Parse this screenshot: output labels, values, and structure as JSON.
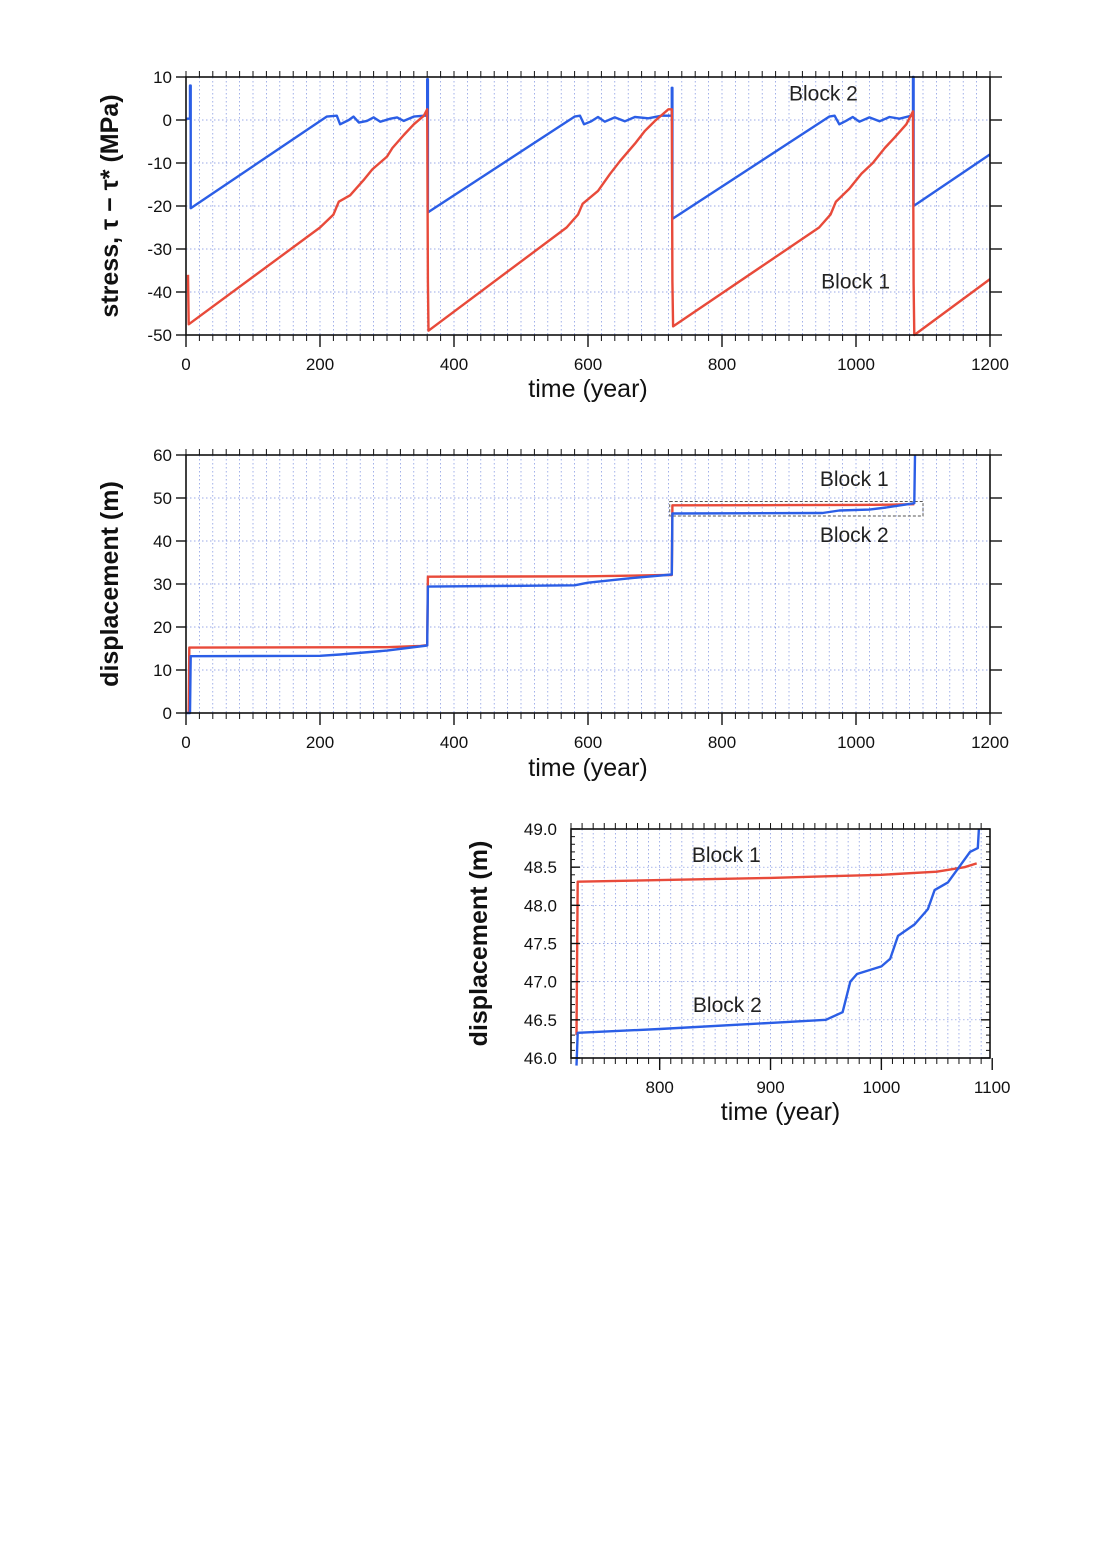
{
  "chart_data": [
    {
      "type": "line",
      "id": "stress",
      "xlabel": "time (year)",
      "ylabel": "stress, τ − τ* (MPa)",
      "xlim": [
        0,
        1200
      ],
      "ylim": [
        -50,
        10
      ],
      "xticks": [
        0,
        200,
        400,
        600,
        800,
        1000,
        1200
      ],
      "yticks": [
        10,
        0,
        -10,
        -20,
        -30,
        -40,
        -50
      ],
      "grid": true,
      "series": [
        {
          "name": "Block 2",
          "color": "#2b5ee6",
          "label_at": [
            900,
            4.5
          ],
          "points": [
            [
              0,
              0.3
            ],
            [
              6,
              0.3
            ],
            [
              6,
              8
            ],
            [
              7,
              8
            ],
            [
              7,
              -20.5
            ],
            [
              210,
              0.8
            ],
            [
              225,
              1
            ],
            [
              230,
              -1
            ],
            [
              243,
              0
            ],
            [
              250,
              0.8
            ],
            [
              258,
              -0.6
            ],
            [
              270,
              -0.2
            ],
            [
              280,
              0.6
            ],
            [
              290,
              -0.4
            ],
            [
              305,
              0.3
            ],
            [
              315,
              0.6
            ],
            [
              325,
              -0.2
            ],
            [
              340,
              0.8
            ],
            [
              355,
              1
            ],
            [
              360,
              1
            ],
            [
              360,
              9.5
            ],
            [
              361,
              9.5
            ],
            [
              361,
              -21.5
            ],
            [
              580,
              0.8
            ],
            [
              588,
              1
            ],
            [
              594,
              -1
            ],
            [
              605,
              -0.3
            ],
            [
              615,
              0.7
            ],
            [
              625,
              -0.4
            ],
            [
              640,
              0.6
            ],
            [
              655,
              -0.3
            ],
            [
              670,
              0.7
            ],
            [
              690,
              0.4
            ],
            [
              710,
              1
            ],
            [
              725,
              1
            ],
            [
              725,
              7.5
            ],
            [
              726,
              7.5
            ],
            [
              726,
              -23
            ],
            [
              960,
              0.8
            ],
            [
              968,
              1
            ],
            [
              975,
              -1
            ],
            [
              985,
              -0.2
            ],
            [
              995,
              0.7
            ],
            [
              1005,
              -0.4
            ],
            [
              1020,
              0.6
            ],
            [
              1035,
              -0.3
            ],
            [
              1050,
              0.7
            ],
            [
              1065,
              0.3
            ],
            [
              1080,
              0.9
            ],
            [
              1085,
              1
            ],
            [
              1085,
              10
            ],
            [
              1086,
              10
            ],
            [
              1086,
              -20
            ],
            [
              1200,
              -8
            ]
          ]
        },
        {
          "name": "Block 1",
          "color": "#e84a3a",
          "label_at": [
            948,
            -39.2
          ],
          "points": [
            [
              3,
              -36
            ],
            [
              4,
              -47.5
            ],
            [
              200,
              -25
            ],
            [
              220,
              -22
            ],
            [
              228,
              -19
            ],
            [
              245,
              -17.5
            ],
            [
              265,
              -14
            ],
            [
              278,
              -11.5
            ],
            [
              300,
              -8.5
            ],
            [
              308,
              -6.5
            ],
            [
              325,
              -3.5
            ],
            [
              340,
              -1
            ],
            [
              355,
              1
            ],
            [
              360,
              2.5
            ],
            [
              361,
              -37.5
            ],
            [
              362,
              -49
            ],
            [
              568,
              -25
            ],
            [
              585,
              -22
            ],
            [
              592,
              -19.5
            ],
            [
              615,
              -16.5
            ],
            [
              633,
              -12.5
            ],
            [
              648,
              -9.5
            ],
            [
              670,
              -5.5
            ],
            [
              685,
              -2.5
            ],
            [
              700,
              -0.2
            ],
            [
              720,
              2.5
            ],
            [
              725,
              2.5
            ],
            [
              726,
              -37.5
            ],
            [
              727,
              -48
            ],
            [
              945,
              -25
            ],
            [
              962,
              -22
            ],
            [
              970,
              -19
            ],
            [
              990,
              -16
            ],
            [
              1008,
              -12.5
            ],
            [
              1025,
              -10
            ],
            [
              1043,
              -6.5
            ],
            [
              1058,
              -4
            ],
            [
              1075,
              -1
            ],
            [
              1085,
              2
            ],
            [
              1086,
              -38
            ],
            [
              1087,
              -50
            ],
            [
              1200,
              -37
            ]
          ]
        }
      ]
    },
    {
      "type": "line",
      "id": "displacement",
      "xlabel": "time (year)",
      "ylabel": "displacement (m)",
      "xlim": [
        0,
        1200
      ],
      "ylim": [
        0,
        60
      ],
      "xticks": [
        0,
        200,
        400,
        600,
        800,
        1000,
        1200
      ],
      "yticks": [
        60,
        50,
        40,
        30,
        20,
        10,
        0
      ],
      "grid": true,
      "zoom_box": {
        "x": [
          722,
          1100
        ],
        "y": [
          45.8,
          49.2
        ]
      },
      "series": [
        {
          "name": "Block 1",
          "color": "#e84a3a",
          "label_at": [
            946,
            52.8
          ],
          "points": [
            [
              4,
              0
            ],
            [
              5,
              15.2
            ],
            [
              300,
              15.3
            ],
            [
              350,
              15.6
            ],
            [
              360,
              15.8
            ],
            [
              361,
              31.7
            ],
            [
              600,
              31.8
            ],
            [
              720,
              32.1
            ],
            [
              725,
              32.1
            ],
            [
              726,
              48.3
            ],
            [
              900,
              48.35
            ],
            [
              1000,
              48.4
            ],
            [
              1050,
              48.45
            ],
            [
              1087,
              48.55
            ]
          ]
        },
        {
          "name": "Block 2",
          "color": "#2b5ee6",
          "label_at": [
            946,
            39.8
          ],
          "points": [
            [
              0,
              0
            ],
            [
              6,
              0
            ],
            [
              7,
              13.2
            ],
            [
              200,
              13.3
            ],
            [
              230,
              13.6
            ],
            [
              300,
              14.5
            ],
            [
              360,
              15.7
            ],
            [
              361,
              29.4
            ],
            [
              580,
              29.7
            ],
            [
              600,
              30.3
            ],
            [
              660,
              31.3
            ],
            [
              725,
              32.2
            ],
            [
              726,
              46.4
            ],
            [
              950,
              46.5
            ],
            [
              975,
              47.1
            ],
            [
              1020,
              47.3
            ],
            [
              1045,
              47.8
            ],
            [
              1075,
              48.5
            ],
            [
              1087,
              48.8
            ],
            [
              1088,
              60
            ]
          ]
        }
      ]
    },
    {
      "type": "line",
      "id": "displacement-zoom",
      "xlabel": "time (year)",
      "ylabel": "displacement (m)",
      "xlim": [
        720,
        1098
      ],
      "ylim": [
        46,
        49
      ],
      "xticks": [
        800,
        900,
        1000,
        1100
      ],
      "yticks": [
        "49.0",
        "48.5",
        "48.0",
        "47.5",
        "47.0",
        "46.5",
        "46.0"
      ],
      "grid": true,
      "series": [
        {
          "name": "Block 1",
          "color": "#e84a3a",
          "label_at": [
            829,
            48.57
          ],
          "points": [
            [
              725,
              46.3
            ],
            [
              726,
              48.31
            ],
            [
              800,
              48.33
            ],
            [
              900,
              48.36
            ],
            [
              950,
              48.38
            ],
            [
              1000,
              48.4
            ],
            [
              1050,
              48.44
            ],
            [
              1075,
              48.5
            ],
            [
              1086,
              48.55
            ]
          ]
        },
        {
          "name": "Block 2",
          "color": "#2b5ee6",
          "label_at": [
            830,
            46.6
          ],
          "points": [
            [
              725,
              45.9
            ],
            [
              726,
              46.33
            ],
            [
              800,
              46.38
            ],
            [
              900,
              46.46
            ],
            [
              950,
              46.5
            ],
            [
              965,
              46.6
            ],
            [
              972,
              47.0
            ],
            [
              978,
              47.1
            ],
            [
              1000,
              47.2
            ],
            [
              1008,
              47.3
            ],
            [
              1015,
              47.6
            ],
            [
              1030,
              47.75
            ],
            [
              1042,
              47.95
            ],
            [
              1048,
              48.2
            ],
            [
              1060,
              48.3
            ],
            [
              1070,
              48.5
            ],
            [
              1080,
              48.7
            ],
            [
              1087,
              48.75
            ],
            [
              1088,
              49.0
            ]
          ]
        }
      ]
    }
  ]
}
